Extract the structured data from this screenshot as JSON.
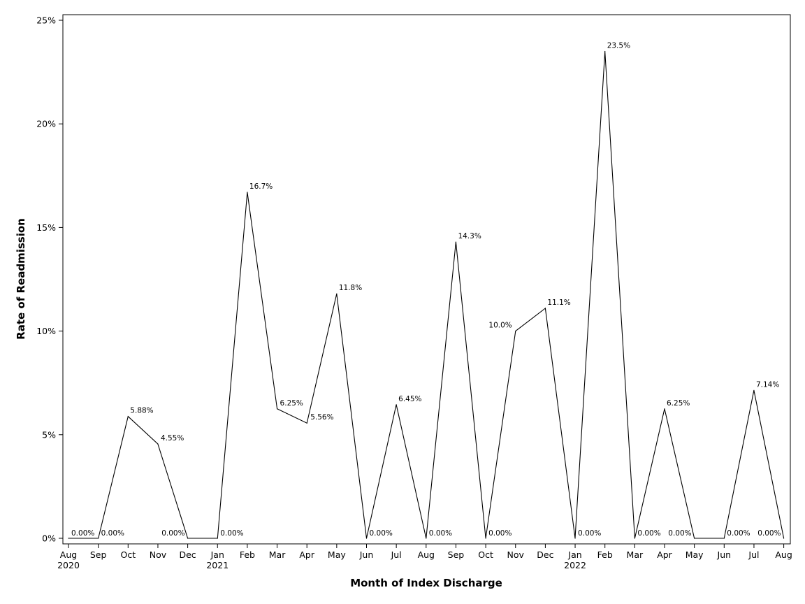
{
  "chart_data": {
    "type": "line",
    "title": "",
    "xlabel": "Month of Index Discharge",
    "ylabel": "Rate of Readmission",
    "ylim": [
      0,
      25
    ],
    "yticks": [
      "0%",
      "5%",
      "10%",
      "15%",
      "20%",
      "25%"
    ],
    "grid": false,
    "x": [
      {
        "month": "Aug",
        "year": "2020"
      },
      {
        "month": "Sep",
        "year": ""
      },
      {
        "month": "Oct",
        "year": ""
      },
      {
        "month": "Nov",
        "year": ""
      },
      {
        "month": "Dec",
        "year": ""
      },
      {
        "month": "Jan",
        "year": "2021"
      },
      {
        "month": "Feb",
        "year": ""
      },
      {
        "month": "Mar",
        "year": ""
      },
      {
        "month": "Apr",
        "year": ""
      },
      {
        "month": "May",
        "year": ""
      },
      {
        "month": "Jun",
        "year": ""
      },
      {
        "month": "Jul",
        "year": ""
      },
      {
        "month": "Aug",
        "year": ""
      },
      {
        "month": "Sep",
        "year": ""
      },
      {
        "month": "Oct",
        "year": ""
      },
      {
        "month": "Nov",
        "year": ""
      },
      {
        "month": "Dec",
        "year": ""
      },
      {
        "month": "Jan",
        "year": "2022"
      },
      {
        "month": "Feb",
        "year": ""
      },
      {
        "month": "Mar",
        "year": ""
      },
      {
        "month": "Apr",
        "year": ""
      },
      {
        "month": "May",
        "year": ""
      },
      {
        "month": "Jun",
        "year": ""
      },
      {
        "month": "Jul",
        "year": ""
      },
      {
        "month": "Aug",
        "year": ""
      }
    ],
    "series": [
      {
        "values": [
          0,
          0,
          5.88,
          4.55,
          0,
          0,
          16.7,
          6.25,
          5.56,
          11.8,
          0,
          6.45,
          0,
          14.3,
          0,
          10.0,
          11.1,
          0,
          23.5,
          0,
          6.25,
          0,
          0,
          7.14,
          0
        ],
        "labels": [
          "0.00%",
          "0.00%",
          "5.88%",
          "4.55%",
          "0.00%",
          "0.00%",
          "16.7%",
          "6.25%",
          "5.56%",
          "11.8%",
          "0.00%",
          "6.45%",
          "0.00%",
          "14.3%",
          "0.00%",
          "10.0%",
          "11.1%",
          "0.00%",
          "23.5%",
          "0.00%",
          "6.25%",
          "0.00%",
          "0.00%",
          "7.14%",
          "0.00%"
        ]
      }
    ]
  }
}
